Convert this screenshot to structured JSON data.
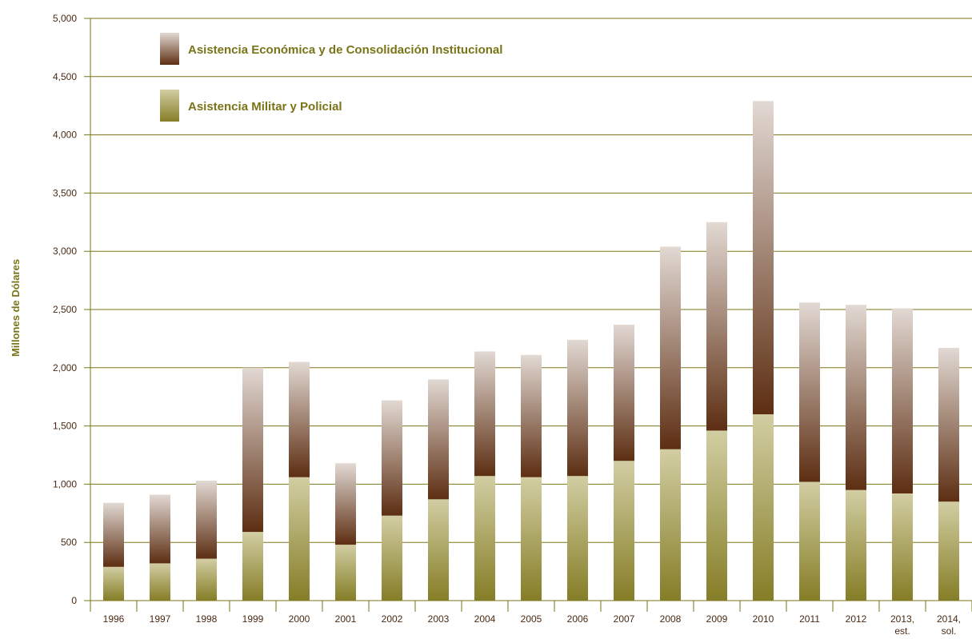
{
  "chart_data": {
    "type": "bar",
    "stacked": true,
    "ylabel": "Millones de Dólares",
    "xlabel": "",
    "ylim": [
      0,
      5000
    ],
    "yticks": [
      "0",
      "500",
      "1,000",
      "1,500",
      "2,000",
      "2,500",
      "3,000",
      "3,500",
      "4,000",
      "4,500",
      "5,000"
    ],
    "categories": [
      [
        "1996"
      ],
      [
        "1997"
      ],
      [
        "1998"
      ],
      [
        "1999"
      ],
      [
        "2000"
      ],
      [
        "2001"
      ],
      [
        "2002"
      ],
      [
        "2003"
      ],
      [
        "2004"
      ],
      [
        "2005"
      ],
      [
        "2006"
      ],
      [
        "2007"
      ],
      [
        "2008"
      ],
      [
        "2009"
      ],
      [
        "2010"
      ],
      [
        "2011"
      ],
      [
        "2012"
      ],
      [
        "2013,",
        "est."
      ],
      [
        "2014,",
        "sol."
      ]
    ],
    "series": [
      {
        "name": "Asistencia Militar y Policial",
        "values": [
          290,
          320,
          360,
          590,
          1060,
          480,
          730,
          870,
          1070,
          1060,
          1070,
          1200,
          1300,
          1460,
          1600,
          1020,
          950,
          920,
          850
        ],
        "colors": {
          "top": "#d2cea3",
          "bottom": "#857d26"
        }
      },
      {
        "name": "Asistencia Económica y de Consolidación Institucional",
        "values": [
          550,
          590,
          670,
          1410,
          990,
          700,
          990,
          1030,
          1070,
          1050,
          1170,
          1170,
          1740,
          1790,
          2690,
          1540,
          1590,
          1590,
          1320
        ],
        "colors": {
          "top": "#e2d9d3",
          "bottom": "#5d2e12"
        }
      }
    ],
    "legend": [
      {
        "label": "Asistencia Económica y de Consolidación Institucional",
        "series": 1
      },
      {
        "label": "Asistencia Militar y Policial",
        "series": 0
      }
    ],
    "grid": true,
    "legend_position": "top-left",
    "colors": {
      "gridline": "#7a7418",
      "text": "#4a2a14",
      "legend_text": "#7a7418"
    }
  }
}
